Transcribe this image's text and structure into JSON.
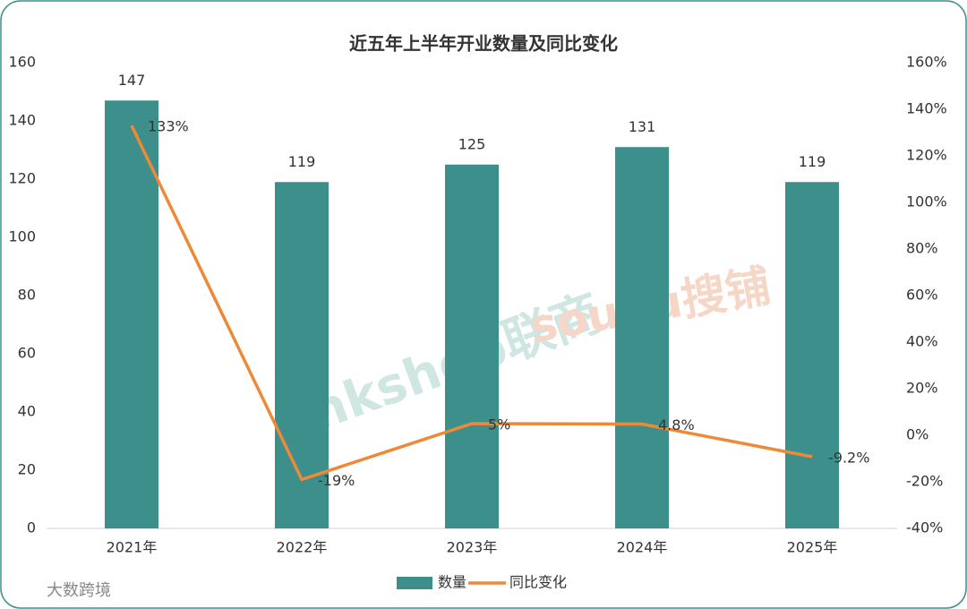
{
  "chart_data": {
    "type": "bar_line",
    "title": "近五年上半年开业数量及同比变化",
    "categories": [
      "2021年",
      "2022年",
      "2023年",
      "2024年",
      "2025年"
    ],
    "series": [
      {
        "name": "数量",
        "type": "bar",
        "color": "#3d8f8b",
        "values": [
          147,
          119,
          125,
          131,
          119
        ]
      },
      {
        "name": "同比变化",
        "type": "line",
        "axis": "y2",
        "color": "#ec8a3a",
        "values": [
          133,
          -19,
          5,
          4.8,
          -9.2
        ],
        "value_labels": [
          "133%",
          "-19%",
          "5%",
          "4.8%",
          "-9.2%"
        ]
      }
    ],
    "ylim": [
      0,
      160
    ],
    "yticks": [
      0,
      20,
      40,
      60,
      80,
      100,
      120,
      140,
      160
    ],
    "y2lim": [
      -40,
      160
    ],
    "y2ticks": [
      {
        "value": -40,
        "label": "-40%"
      },
      {
        "value": -20,
        "label": "-20%"
      },
      {
        "value": 0,
        "label": "0%"
      },
      {
        "value": 20,
        "label": "20%"
      },
      {
        "value": 40,
        "label": "40%"
      },
      {
        "value": 60,
        "label": "60%"
      },
      {
        "value": 80,
        "label": "80%"
      },
      {
        "value": 100,
        "label": "100%"
      },
      {
        "value": 120,
        "label": "120%"
      },
      {
        "value": 140,
        "label": "140%"
      },
      {
        "value": 160,
        "label": "160%"
      }
    ],
    "grid": false,
    "legend": "bottom"
  },
  "watermarks": [
    "linkshop联商",
    "soupu搜铺",
    "大数跨境"
  ]
}
